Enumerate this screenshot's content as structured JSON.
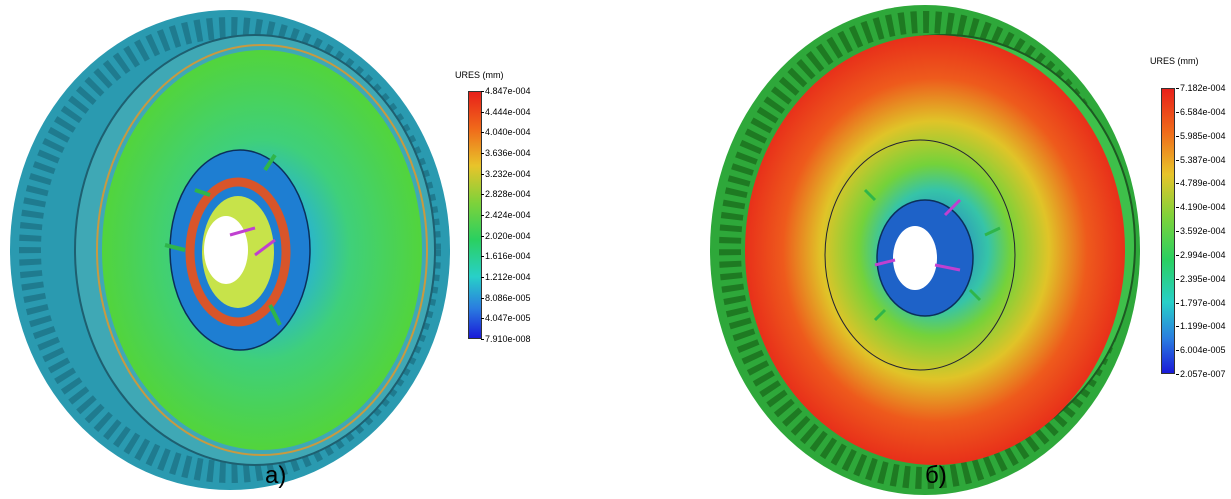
{
  "panels": [
    {
      "caption": "а)",
      "legend": {
        "title": "URES (mm)",
        "ticks": [
          "4.847e-004",
          "4.444e-004",
          "4.040e-004",
          "3.636e-004",
          "3.232e-004",
          "2.828e-004",
          "2.424e-004",
          "2.020e-004",
          "1.616e-004",
          "1.212e-004",
          "8.086e-005",
          "4.047e-005",
          "7.910e-008"
        ]
      }
    },
    {
      "caption": "б)",
      "legend": {
        "title": "URES (mm)",
        "ticks": [
          "7.182e-004",
          "6.584e-004",
          "5.985e-004",
          "5.387e-004",
          "4.789e-004",
          "4.190e-004",
          "3.592e-004",
          "2.994e-004",
          "2.395e-004",
          "1.797e-004",
          "1.199e-004",
          "6.004e-005",
          "2.057e-007"
        ]
      }
    }
  ]
}
